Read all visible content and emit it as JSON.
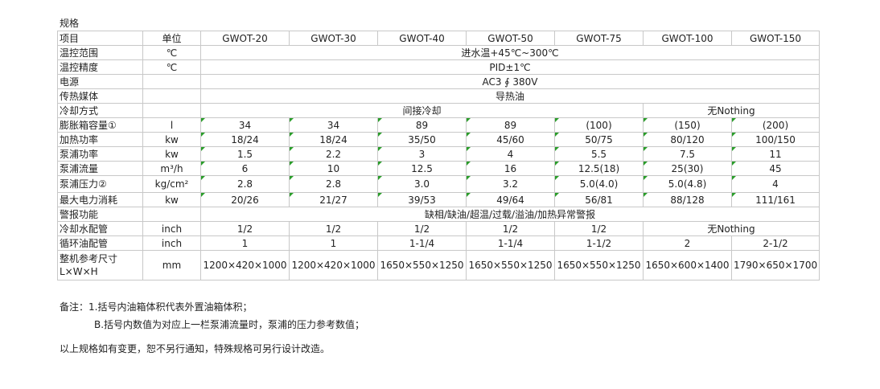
{
  "title": "规格",
  "table": {
    "header": [
      "项目",
      "单位",
      "GWOT-20",
      "GWOT-30",
      "GWOT-40",
      "GWOT-50",
      "GWOT-75",
      "GWOT-100",
      "GWOT-150"
    ],
    "rows": [
      [
        "温控范围",
        "℃",
        "进水温+45℃~300℃"
      ],
      [
        "温控精度",
        "℃",
        "PID±1℃"
      ],
      [
        "电源",
        "AC3 ∮ 380V"
      ],
      [
        "传热媒体",
        "导热油"
      ],
      [
        "冷却方式",
        "间接冷却",
        "无Nothing"
      ],
      [
        "膨胀箱容量①",
        "l",
        "34",
        "34",
        "89",
        "89",
        "(100)",
        "(150)",
        "(200)"
      ],
      [
        "加热功率",
        "kw",
        "18/24",
        "18/24",
        "35/50",
        "45/60",
        "50/75",
        "80/120",
        "100/150"
      ],
      [
        "泵浦功率",
        "kw",
        "1.5",
        "2.2",
        "3",
        "4",
        "5.5",
        "7.5",
        "11"
      ],
      [
        "泵浦流量",
        "m³/h",
        "6",
        "10",
        "12.5",
        "16",
        "12.5(18)",
        "25(30)",
        "45"
      ],
      [
        "泵浦压力②",
        "kg/cm²",
        "2.8",
        "2.8",
        "3.0",
        "3.2",
        "5.0(4.0)",
        "5.0(4.8)",
        "4"
      ],
      [
        "最大电力消耗",
        "kw",
        "20/26",
        "21/27",
        "39/53",
        "49/64",
        "56/81",
        "88/128",
        "111/161"
      ],
      [
        "警报功能",
        "缺相/缺油/超温/过载/溢油/加热异常警报"
      ],
      [
        "冷却水配管",
        "inch",
        "1/2",
        "1/2",
        "1/2",
        "1/2",
        "1/2",
        "无Nothing"
      ],
      [
        "循环油配管",
        "inch",
        "1",
        "1",
        "1-1/4",
        "1-1/4",
        "1-1/2",
        "2",
        "2-1/2"
      ],
      [
        "整机参考尺寸\nL×W×H",
        "mm",
        "1200×420×1000",
        "1200×420×1000",
        "1650×550×1250",
        "1650×550×1250",
        "1650×550×1250",
        "1650×600×1400",
        "1790×650×1700"
      ]
    ]
  },
  "notes": [
    "备注：1.括号内油箱体积代表外置油箱体积；",
    "B.括号内数值为对应上一栏泵浦流量时，泵浦的压力参考数值；"
  ],
  "footer": "以上规格如有变更，恕不另行通知，特殊规格可另行设计改造。"
}
